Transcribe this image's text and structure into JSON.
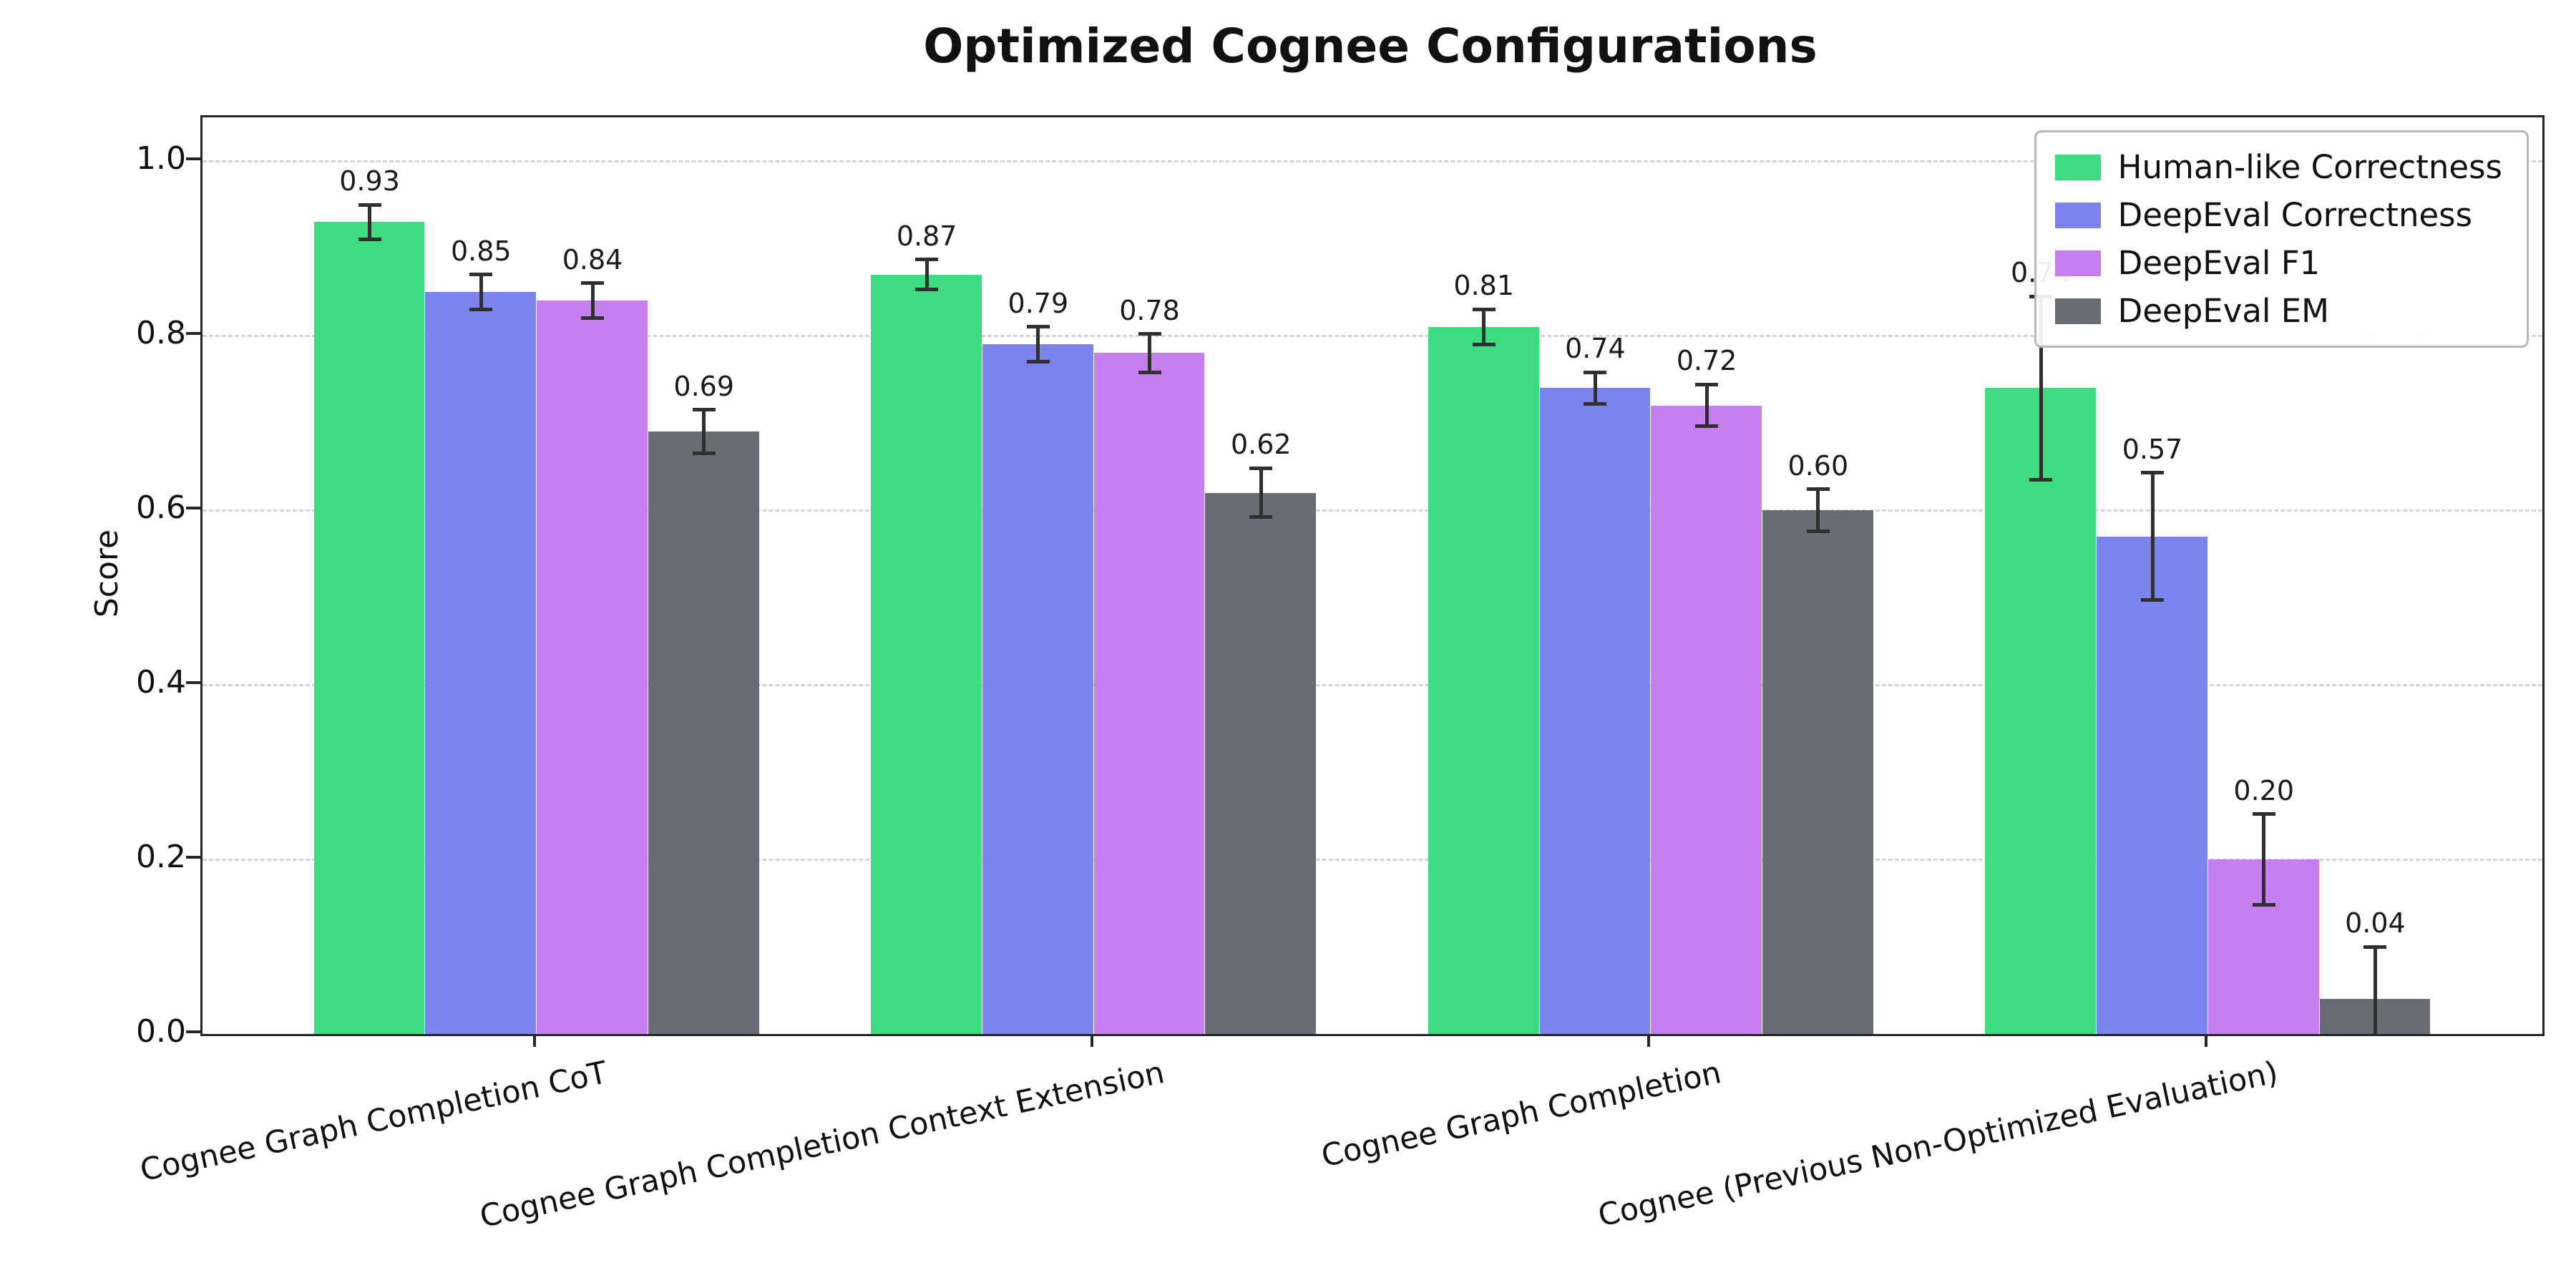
{
  "chart_data": {
    "type": "bar",
    "title": "Optimized Cognee Configurations",
    "ylabel": "Score",
    "xlabel": "",
    "ylim": [
      0,
      1.05
    ],
    "yticks": [
      0.0,
      0.2,
      0.4,
      0.6,
      0.8,
      1.0
    ],
    "grid": "horizontal-dashed",
    "legend_position": "upper-right",
    "error_bars": true,
    "error_bar_color": "#2f2f2f",
    "categories": [
      "Cognee Graph Completion CoT",
      "Cognee Graph Completion Context Extension",
      "Cognee Graph Completion",
      "Cognee (Previous Non-Optimized Evaluation)"
    ],
    "series": [
      {
        "name": "Human-like Correctness",
        "color": "#3edc81",
        "values": [
          0.93,
          0.87,
          0.81,
          0.74
        ],
        "errors": [
          0.02,
          0.017,
          0.02,
          0.105
        ]
      },
      {
        "name": "DeepEval Correctness",
        "color": "#7b83ee",
        "values": [
          0.85,
          0.79,
          0.74,
          0.57
        ],
        "errors": [
          0.02,
          0.02,
          0.018,
          0.073
        ]
      },
      {
        "name": "DeepEval F1",
        "color": "#c77ff0",
        "values": [
          0.84,
          0.78,
          0.72,
          0.2
        ],
        "errors": [
          0.02,
          0.022,
          0.024,
          0.052
        ]
      },
      {
        "name": "DeepEval EM",
        "color": "#686c73",
        "values": [
          0.69,
          0.62,
          0.6,
          0.04
        ],
        "errors": [
          0.025,
          0.028,
          0.024,
          0.06
        ]
      }
    ]
  }
}
